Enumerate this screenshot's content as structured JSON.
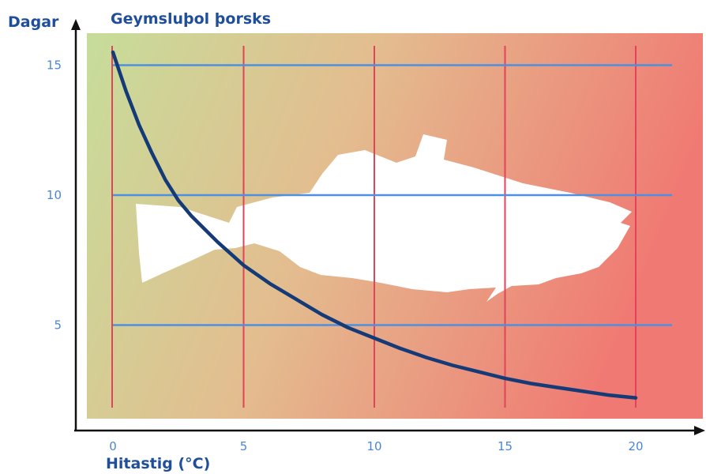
{
  "chart_data": {
    "type": "line",
    "title": "Geymsluþol þorsks",
    "xlabel": "Hitastig (°C)",
    "ylabel": "Dagar",
    "xlim": [
      0,
      21.5
    ],
    "ylim": [
      1.3,
      16.1
    ],
    "x_ticks": [
      0,
      5,
      10,
      15,
      20
    ],
    "y_ticks": [
      5,
      10,
      15
    ],
    "x_tick_labels": [
      "0",
      "5",
      "10",
      "15",
      "20"
    ],
    "y_tick_labels": [
      "5",
      "10",
      "15"
    ],
    "grid": true,
    "series": [
      {
        "x": [
          0,
          0.5,
          1,
          1.5,
          2,
          2.5,
          3,
          4,
          5,
          6,
          7,
          8,
          9,
          10,
          11,
          12,
          13,
          14,
          15,
          16,
          17,
          18,
          19,
          20
        ],
        "values": [
          15.5,
          14.0,
          12.7,
          11.6,
          10.6,
          9.8,
          9.2,
          8.2,
          7.3,
          6.6,
          6.0,
          5.4,
          4.9,
          4.5,
          4.1,
          3.75,
          3.45,
          3.2,
          2.95,
          2.75,
          2.6,
          2.45,
          2.3,
          2.2
        ]
      }
    ],
    "colors": {
      "curve": "#143a78",
      "vertical_grid": "#e0435a",
      "horizontal_grid": "#4f8fe0",
      "tick_label": "#4a86d4",
      "title": "#1f4e9a",
      "axis": "#111111",
      "bg_left": "#c6dd9a",
      "bg_mid": "#e3bd8f",
      "bg_right": "#f07a73"
    },
    "background_icon": "fish-silhouette"
  }
}
